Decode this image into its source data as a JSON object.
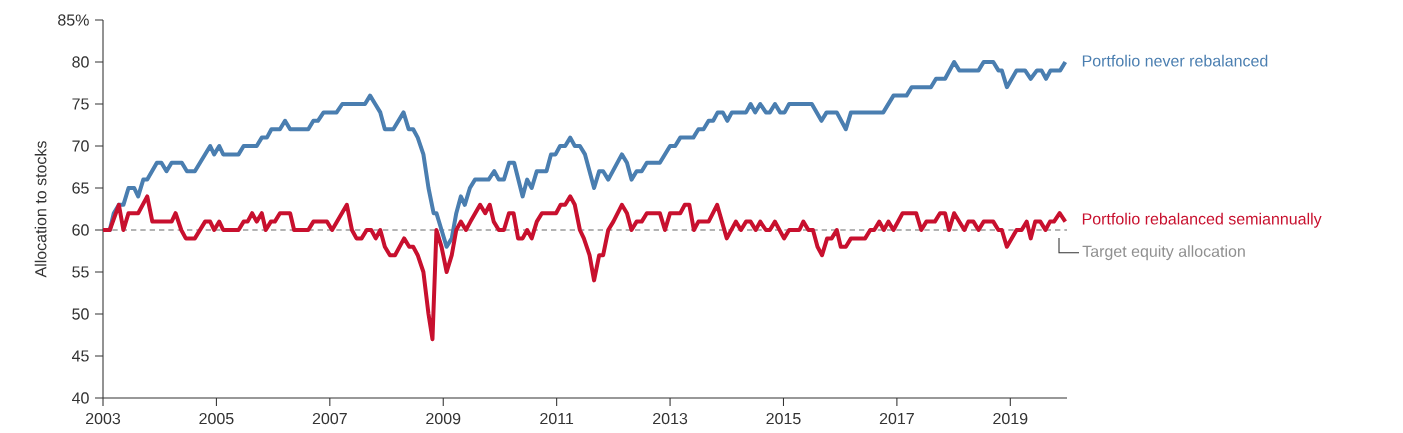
{
  "chart_data": {
    "type": "line",
    "ylabel": "Allocation to stocks",
    "xlim": [
      2003,
      2020
    ],
    "xticks": [
      2003,
      2005,
      2007,
      2009,
      2011,
      2013,
      2015,
      2017,
      2019
    ],
    "ylim": [
      40,
      85
    ],
    "yticks": [
      40,
      45,
      50,
      55,
      60,
      65,
      70,
      75,
      80,
      {
        "value": 85,
        "label": "85%"
      }
    ],
    "line_style": "solid",
    "series": [
      {
        "name": "Portfolio never rebalanced",
        "color": "#4a7eb0",
        "x": [
          2003.0,
          2003.12,
          2003.19,
          2003.28,
          2003.36,
          2003.45,
          2003.55,
          2003.62,
          2003.71,
          2003.78,
          2003.95,
          2004.03,
          2004.12,
          2004.21,
          2004.39,
          2004.48,
          2004.62,
          2004.89,
          2004.96,
          2005.05,
          2005.12,
          2005.39,
          2005.48,
          2005.71,
          2005.8,
          2005.89,
          2005.97,
          2006.12,
          2006.21,
          2006.3,
          2006.62,
          2006.71,
          2006.79,
          2006.89,
          2007.12,
          2007.22,
          2007.62,
          2007.71,
          2007.8,
          2007.89,
          2007.97,
          2008.12,
          2008.3,
          2008.39,
          2008.47,
          2008.55,
          2008.65,
          2008.74,
          2008.83,
          2008.88,
          2008.97,
          2009.06,
          2009.15,
          2009.23,
          2009.31,
          2009.38,
          2009.47,
          2009.56,
          2009.8,
          2009.9,
          2009.98,
          2010.07,
          2010.16,
          2010.25,
          2010.4,
          2010.48,
          2010.56,
          2010.65,
          2010.82,
          2010.9,
          2010.98,
          2011.06,
          2011.15,
          2011.24,
          2011.32,
          2011.41,
          2011.5,
          2011.66,
          2011.75,
          2011.82,
          2011.91,
          2012.15,
          2012.24,
          2012.32,
          2012.41,
          2012.5,
          2012.59,
          2012.82,
          2013.0,
          2013.09,
          2013.18,
          2013.41,
          2013.5,
          2013.59,
          2013.68,
          2013.76,
          2013.84,
          2013.93,
          2014.01,
          2014.09,
          2014.34,
          2014.42,
          2014.5,
          2014.59,
          2014.69,
          2014.76,
          2014.85,
          2014.94,
          2015.02,
          2015.1,
          2015.5,
          2015.67,
          2015.76,
          2015.94,
          2016.1,
          2016.19,
          2016.76,
          2016.94,
          2017.17,
          2017.26,
          2017.6,
          2017.69,
          2017.85,
          2018.01,
          2018.1,
          2018.44,
          2018.53,
          2018.7,
          2018.79,
          2018.85,
          2018.94,
          2019.11,
          2019.26,
          2019.36,
          2019.47,
          2019.55,
          2019.63,
          2019.71,
          2019.88,
          2019.97
        ],
        "values": [
          60,
          60,
          62,
          63,
          63,
          65,
          65,
          64,
          66,
          66,
          68,
          68,
          67,
          68,
          68,
          67,
          67,
          70,
          69,
          70,
          69,
          69,
          70,
          70,
          71,
          71,
          72,
          72,
          73,
          72,
          72,
          73,
          73,
          74,
          74,
          75,
          75,
          76,
          75,
          74,
          72,
          72,
          74,
          72,
          72,
          71,
          69,
          65,
          62,
          62,
          60,
          58,
          59,
          62,
          64,
          63,
          65,
          66,
          66,
          67,
          66,
          66,
          68,
          68,
          64,
          66,
          65,
          67,
          67,
          69,
          69,
          70,
          70,
          71,
          70,
          70,
          69,
          65,
          67,
          67,
          66,
          69,
          68,
          66,
          67,
          67,
          68,
          68,
          70,
          70,
          71,
          71,
          72,
          72,
          73,
          73,
          74,
          74,
          73,
          74,
          74,
          75,
          74,
          75,
          74,
          74,
          75,
          74,
          74,
          75,
          75,
          73,
          74,
          74,
          72,
          74,
          74,
          76,
          76,
          77,
          77,
          78,
          78,
          80,
          79,
          79,
          80,
          80,
          79,
          79,
          77,
          79,
          79,
          78,
          79,
          79,
          78,
          79,
          79,
          80
        ]
      },
      {
        "name": "Portfolio rebalanced semiannually",
        "color": "#c8102e",
        "x": [
          2003.0,
          2003.12,
          2003.28,
          2003.36,
          2003.45,
          2003.62,
          2003.78,
          2003.87,
          2004.21,
          2004.28,
          2004.38,
          2004.46,
          2004.62,
          2004.8,
          2004.89,
          2004.96,
          2005.05,
          2005.12,
          2005.39,
          2005.48,
          2005.55,
          2005.63,
          2005.71,
          2005.8,
          2005.87,
          2005.96,
          2006.03,
          2006.12,
          2006.3,
          2006.37,
          2006.62,
          2006.71,
          2006.95,
          2007.04,
          2007.3,
          2007.39,
          2007.47,
          2007.56,
          2007.65,
          2007.73,
          2007.81,
          2007.89,
          2007.97,
          2008.06,
          2008.15,
          2008.31,
          2008.4,
          2008.47,
          2008.55,
          2008.65,
          2008.74,
          2008.81,
          2008.88,
          2008.97,
          2009.06,
          2009.15,
          2009.23,
          2009.31,
          2009.4,
          2009.48,
          2009.65,
          2009.74,
          2009.82,
          2009.89,
          2009.98,
          2010.07,
          2010.16,
          2010.24,
          2010.32,
          2010.4,
          2010.48,
          2010.56,
          2010.65,
          2010.74,
          2010.99,
          2011.07,
          2011.15,
          2011.24,
          2011.32,
          2011.41,
          2011.48,
          2011.58,
          2011.66,
          2011.75,
          2011.82,
          2011.91,
          2012.0,
          2012.15,
          2012.24,
          2012.32,
          2012.41,
          2012.5,
          2012.59,
          2012.82,
          2012.91,
          2013.0,
          2013.18,
          2013.26,
          2013.34,
          2013.42,
          2013.5,
          2013.68,
          2013.83,
          2014.0,
          2014.16,
          2014.25,
          2014.34,
          2014.42,
          2014.51,
          2014.59,
          2014.69,
          2014.76,
          2014.85,
          2015.01,
          2015.1,
          2015.28,
          2015.35,
          2015.44,
          2015.52,
          2015.6,
          2015.68,
          2015.77,
          2015.85,
          2015.94,
          2016.01,
          2016.1,
          2016.19,
          2016.44,
          2016.53,
          2016.6,
          2016.69,
          2016.77,
          2016.85,
          2016.94,
          2017.1,
          2017.34,
          2017.43,
          2017.52,
          2017.67,
          2017.76,
          2017.85,
          2017.92,
          2018.01,
          2018.19,
          2018.26,
          2018.35,
          2018.44,
          2018.53,
          2018.7,
          2018.79,
          2018.85,
          2018.94,
          2019.11,
          2019.2,
          2019.29,
          2019.36,
          2019.44,
          2019.53,
          2019.62,
          2019.7,
          2019.77,
          2019.87,
          2019.97
        ],
        "values": [
          60,
          60,
          63,
          60,
          62,
          62,
          64,
          61,
          61,
          62,
          60,
          59,
          59,
          61,
          61,
          60,
          61,
          60,
          60,
          61,
          61,
          62,
          61,
          62,
          60,
          61,
          61,
          62,
          62,
          60,
          60,
          61,
          61,
          60,
          63,
          60,
          59,
          59,
          60,
          60,
          59,
          60,
          58,
          57,
          57,
          59,
          58,
          58,
          57,
          55,
          50,
          47,
          60,
          58,
          55,
          57,
          60,
          61,
          60,
          61,
          63,
          62,
          63,
          61,
          60,
          60,
          62,
          62,
          59,
          59,
          60,
          59,
          61,
          62,
          62,
          63,
          63,
          64,
          63,
          60,
          59,
          57,
          54,
          57,
          57,
          60,
          61,
          63,
          62,
          60,
          61,
          61,
          62,
          62,
          60,
          62,
          62,
          63,
          63,
          60,
          61,
          61,
          63,
          59,
          61,
          60,
          61,
          61,
          60,
          61,
          60,
          60,
          61,
          59,
          60,
          60,
          61,
          60,
          60,
          58,
          57,
          59,
          59,
          60,
          58,
          58,
          59,
          59,
          60,
          60,
          61,
          60,
          61,
          60,
          62,
          62,
          60,
          61,
          61,
          62,
          62,
          60,
          62,
          60,
          61,
          61,
          60,
          61,
          61,
          60,
          60,
          58,
          60,
          60,
          61,
          59,
          61,
          61,
          60,
          61,
          61,
          62,
          61
        ]
      }
    ],
    "ref_lines": [
      {
        "axis": "y",
        "value": 60,
        "label": "Target equity allocation",
        "color": "#b3b3b3",
        "line_style": "dashed"
      }
    ]
  }
}
